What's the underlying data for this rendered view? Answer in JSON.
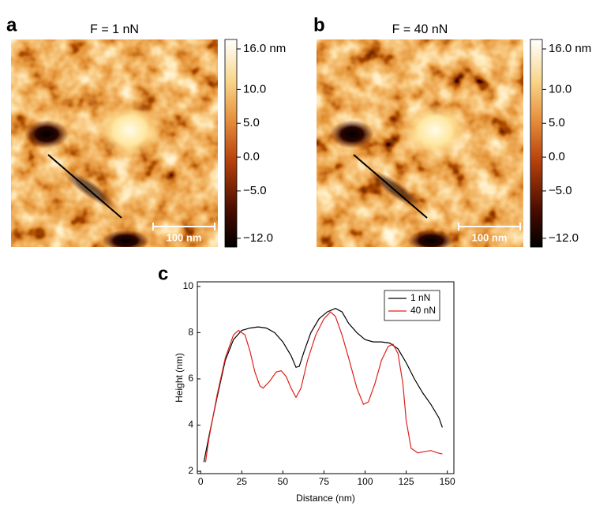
{
  "chart_data": [
    {
      "type": "image",
      "panel_label": "a",
      "title": "F = 1 nN",
      "scale_bar": "100 nm",
      "clim": [
        -13.3,
        17.4
      ],
      "cticks": [
        {
          "value": 16,
          "label": "16.0 nm"
        },
        {
          "value": 10,
          "label": "10.0"
        },
        {
          "value": 5,
          "label": "5.0"
        },
        {
          "value": 0,
          "label": "0.0"
        },
        {
          "value": -5,
          "label": "−5.0"
        },
        {
          "value": -12,
          "label": "−12.0"
        }
      ]
    },
    {
      "type": "image",
      "panel_label": "b",
      "title": "F = 40 nN",
      "scale_bar": "100 nm",
      "clim": [
        -13.3,
        17.4
      ],
      "cticks": [
        {
          "value": 16,
          "label": "16.0 nm"
        },
        {
          "value": 10,
          "label": "10.0"
        },
        {
          "value": 5,
          "label": "5.0"
        },
        {
          "value": 0,
          "label": "0.0"
        },
        {
          "value": -5,
          "label": "−5.0"
        },
        {
          "value": -12,
          "label": "−12.0"
        }
      ]
    },
    {
      "type": "line",
      "panel_label": "c",
      "xlabel": "Distance (nm)",
      "ylabel": "Height (nm)",
      "xlim": [
        -2,
        154
      ],
      "ylim": [
        1.9,
        10.2
      ],
      "xticks": [
        0,
        25,
        50,
        75,
        100,
        125,
        150
      ],
      "yticks": [
        2,
        4,
        6,
        8,
        10
      ],
      "legend": "upper right",
      "series": [
        {
          "name": "1 nN",
          "color": "#000000",
          "x": [
            2,
            5,
            10,
            15,
            20,
            25,
            30,
            35,
            40,
            45,
            50,
            55,
            58,
            60,
            63,
            67,
            72,
            77,
            82,
            86,
            90,
            95,
            100,
            105,
            110,
            115,
            120,
            125,
            130,
            135,
            140,
            145,
            147
          ],
          "values": [
            2.4,
            3.5,
            5.2,
            6.8,
            7.7,
            8.1,
            8.2,
            8.25,
            8.2,
            8.0,
            7.6,
            7.0,
            6.5,
            6.55,
            7.2,
            8.0,
            8.6,
            8.9,
            9.05,
            8.9,
            8.4,
            8.0,
            7.7,
            7.6,
            7.6,
            7.55,
            7.3,
            6.7,
            6.0,
            5.4,
            4.9,
            4.3,
            3.9
          ]
        },
        {
          "name": "40 nN",
          "color": "#e0201b",
          "x": [
            3,
            5,
            10,
            15,
            20,
            23,
            27,
            30,
            33,
            36,
            38,
            42,
            46,
            49,
            52,
            55,
            58,
            61,
            65,
            70,
            75,
            79,
            82,
            86,
            90,
            95,
            99,
            102,
            106,
            110,
            114,
            117,
            120,
            123,
            125,
            128,
            132,
            136,
            140,
            144,
            147
          ],
          "values": [
            2.4,
            3.4,
            5.3,
            6.9,
            7.9,
            8.1,
            7.9,
            7.2,
            6.3,
            5.7,
            5.6,
            5.9,
            6.3,
            6.35,
            6.1,
            5.6,
            5.2,
            5.6,
            6.8,
            7.9,
            8.6,
            8.9,
            8.7,
            7.9,
            6.9,
            5.6,
            4.9,
            5.0,
            5.8,
            6.8,
            7.4,
            7.5,
            7.1,
            5.8,
            4.2,
            3.0,
            2.8,
            2.85,
            2.9,
            2.8,
            2.75
          ]
        }
      ]
    }
  ]
}
